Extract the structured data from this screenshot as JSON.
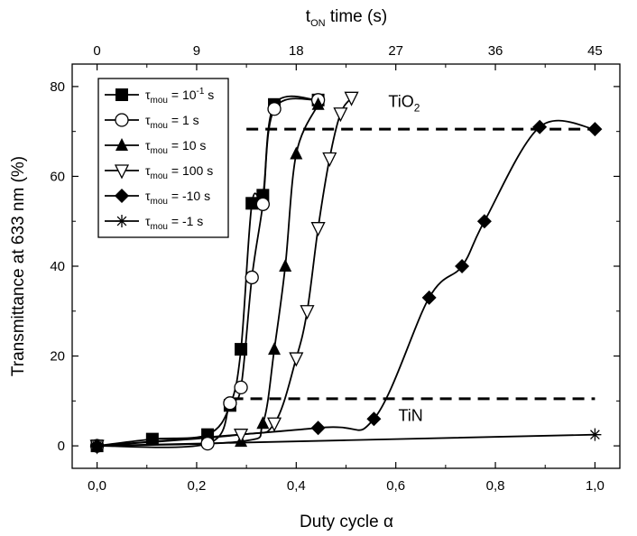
{
  "chart_data": {
    "type": "scatter",
    "title": "",
    "xlabel": "Duty cycle α",
    "ylabel": "Transmittance at 633 nm (%)",
    "x2label": "t_ON time (s)",
    "xlim": [
      -0.05,
      1.05
    ],
    "ylim": [
      -5,
      85
    ],
    "x2lim": [
      -2.25,
      47.25
    ],
    "xticks": [
      0.0,
      0.2,
      0.4,
      0.6,
      0.8,
      1.0
    ],
    "xtick_labels": [
      "0,0",
      "0,2",
      "0,4",
      "0,6",
      "0,8",
      "1,0"
    ],
    "yticks": [
      0,
      20,
      40,
      60,
      80
    ],
    "ytick_labels": [
      "0",
      "20",
      "40",
      "60",
      "80"
    ],
    "x2ticks": [
      0,
      9,
      18,
      27,
      36,
      45
    ],
    "x2tick_labels": [
      "0",
      "9",
      "18",
      "27",
      "36",
      "45"
    ],
    "grid": false,
    "legend_position": "top-left",
    "series": [
      {
        "name": "τmou = 10⁻¹ s",
        "marker": "square-filled",
        "points": [
          [
            0.0,
            0.0
          ],
          [
            0.111,
            1.5
          ],
          [
            0.222,
            2.5
          ],
          [
            0.267,
            9.0
          ],
          [
            0.289,
            21.5
          ],
          [
            0.311,
            54.0
          ],
          [
            0.333,
            55.8
          ],
          [
            0.356,
            76.0
          ],
          [
            0.444,
            77.0
          ]
        ]
      },
      {
        "name": "τmou = 1 s",
        "marker": "circle-open",
        "points": [
          [
            0.0,
            0.0
          ],
          [
            0.222,
            0.5
          ],
          [
            0.267,
            9.5
          ],
          [
            0.289,
            13.0
          ],
          [
            0.311,
            37.5
          ],
          [
            0.333,
            53.8
          ],
          [
            0.356,
            75.0
          ],
          [
            0.444,
            77.0
          ]
        ]
      },
      {
        "name": "τmou = 10 s",
        "marker": "triangle-up-filled",
        "points": [
          [
            0.0,
            0.0
          ],
          [
            0.289,
            1.0
          ],
          [
            0.333,
            5.0
          ],
          [
            0.356,
            21.5
          ],
          [
            0.378,
            40.0
          ],
          [
            0.4,
            65.0
          ],
          [
            0.444,
            76.0
          ]
        ]
      },
      {
        "name": "τmou = 100 s",
        "marker": "triangle-down-open",
        "points": [
          [
            0.0,
            0.0
          ],
          [
            0.289,
            2.5
          ],
          [
            0.356,
            5.0
          ],
          [
            0.4,
            19.5
          ],
          [
            0.422,
            30.0
          ],
          [
            0.444,
            48.5
          ],
          [
            0.467,
            64.0
          ],
          [
            0.489,
            74.0
          ],
          [
            0.511,
            77.5
          ]
        ]
      },
      {
        "name": "τmou = -10 s",
        "marker": "diamond-filled",
        "points": [
          [
            0.0,
            0.0
          ],
          [
            0.444,
            4.0
          ],
          [
            0.556,
            6.0
          ],
          [
            0.667,
            33.0
          ],
          [
            0.733,
            40.0
          ],
          [
            0.778,
            50.0
          ],
          [
            0.889,
            71.0
          ],
          [
            1.0,
            70.5
          ]
        ]
      },
      {
        "name": "τmou = -1 s",
        "marker": "asterisk",
        "points": [
          [
            0.0,
            0.0
          ],
          [
            1.0,
            2.5
          ]
        ]
      }
    ],
    "reference_lines": [
      {
        "label": "TiO₂",
        "y": 70.5,
        "x_from": 0.3,
        "x_to": 1.0,
        "style": "dashed"
      },
      {
        "label": "TiN",
        "y": 10.5,
        "x_from": 0.27,
        "x_to": 1.0,
        "style": "dashed"
      }
    ],
    "annotations": [
      {
        "text": "TiO₂",
        "x": 0.585,
        "y": 75.5
      },
      {
        "text": "TiN",
        "x": 0.605,
        "y": 5.5
      }
    ]
  }
}
